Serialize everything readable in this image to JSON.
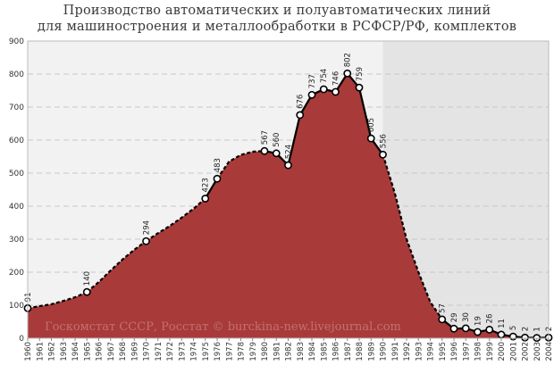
{
  "chart_data": {
    "type": "area",
    "title_lines": [
      "Производство автоматических и полуавтоматических линий",
      "для машиностроения и металлообработки в РСФСР/РФ, комплектов"
    ],
    "watermark": "Госкомстат СССР, Росстат © burckina-new.livejournal.com",
    "ylim": [
      0,
      900
    ],
    "yticks": [
      0,
      100,
      200,
      300,
      400,
      500,
      600,
      700,
      800,
      900
    ],
    "xlim": [
      1960,
      2004
    ],
    "categories": [
      "1960",
      "1961",
      "1962",
      "1963",
      "1964",
      "1965",
      "1966",
      "1967",
      "1968",
      "1969",
      "1970",
      "1971",
      "1972",
      "1973",
      "1974",
      "1975",
      "1976",
      "1977",
      "1978",
      "1979",
      "1980",
      "1981",
      "1982",
      "1983",
      "1984",
      "1985",
      "1986",
      "1987",
      "1988",
      "1989",
      "1990",
      "1991",
      "1992",
      "1993",
      "1994",
      "1995",
      "1996",
      "1997",
      "1998",
      "1999",
      "2000",
      "2001",
      "2002",
      "2003",
      "2004"
    ],
    "shaded_region": [
      1990,
      2004
    ],
    "colors": {
      "fill": "#a83a39",
      "line": "#000000",
      "background_left": "#f2f2f2",
      "background_right": "#e4e4e4",
      "grid": "#c8c8c8"
    },
    "grid": true,
    "points": [
      {
        "x": 1960,
        "y": 91,
        "label": "91"
      },
      {
        "x": 1965,
        "y": 140,
        "label": "140"
      },
      {
        "x": 1970,
        "y": 294,
        "label": "294"
      },
      {
        "x": 1975,
        "y": 423,
        "label": "423"
      },
      {
        "x": 1976,
        "y": 483,
        "label": "483"
      },
      {
        "x": 1980,
        "y": 567,
        "label": "567"
      },
      {
        "x": 1981,
        "y": 560,
        "label": "560"
      },
      {
        "x": 1982,
        "y": 524,
        "label": "524"
      },
      {
        "x": 1983,
        "y": 676,
        "label": "676"
      },
      {
        "x": 1984,
        "y": 737,
        "label": "737"
      },
      {
        "x": 1985,
        "y": 754,
        "label": "754"
      },
      {
        "x": 1986,
        "y": 746,
        "label": "746"
      },
      {
        "x": 1987,
        "y": 802,
        "label": "802"
      },
      {
        "x": 1988,
        "y": 759,
        "label": "759"
      },
      {
        "x": 1989,
        "y": 605,
        "label": "605"
      },
      {
        "x": 1990,
        "y": 556,
        "label": "556"
      },
      {
        "x": 1995,
        "y": 57,
        "label": "57"
      },
      {
        "x": 1996,
        "y": 29,
        "label": "29"
      },
      {
        "x": 1997,
        "y": 30,
        "label": "30"
      },
      {
        "x": 1998,
        "y": 19,
        "label": "19"
      },
      {
        "x": 1999,
        "y": 26,
        "label": "26"
      },
      {
        "x": 2000,
        "y": 11,
        "label": "11"
      },
      {
        "x": 2001,
        "y": 5,
        "label": "5"
      },
      {
        "x": 2002,
        "y": 2,
        "label": "2"
      },
      {
        "x": 2003,
        "y": 1,
        "label": "1"
      },
      {
        "x": 2004,
        "y": 2,
        "label": "2"
      }
    ],
    "interpolated_segments": [
      {
        "x": [
          1960,
          1962,
          1963,
          1964,
          1965
        ],
        "y": [
          91,
          103,
          113,
          124,
          140
        ]
      },
      {
        "x": [
          1965,
          1966,
          1967,
          1968,
          1969,
          1970
        ],
        "y": [
          140,
          170,
          205,
          238,
          268,
          294
        ]
      },
      {
        "x": [
          1970,
          1971,
          1972,
          1973,
          1974,
          1975
        ],
        "y": [
          294,
          318,
          340,
          365,
          392,
          423
        ]
      },
      {
        "x": [
          1976,
          1977,
          1978,
          1979,
          1980
        ],
        "y": [
          483,
          535,
          555,
          565,
          567
        ]
      },
      {
        "x": [
          1990,
          1991,
          1992,
          1993,
          1994,
          1995
        ],
        "y": [
          556,
          440,
          300,
          200,
          110,
          57
        ]
      }
    ]
  }
}
